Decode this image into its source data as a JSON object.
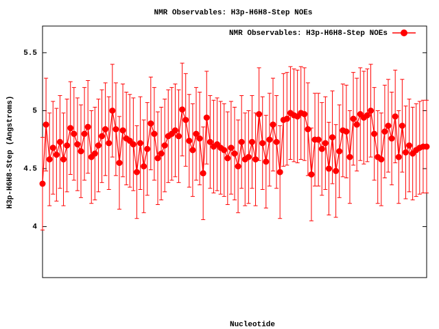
{
  "chart_data": {
    "type": "errorline",
    "title": "NMR Observables: H3p-H6H8-Step NOEs",
    "y_label": "H3p-H6H8-Step (Angstroms)",
    "x_label": "Nucleotide",
    "xlim": [
      1,
      111
    ],
    "ylim": [
      3.56,
      5.73
    ],
    "yticks": [
      4,
      4.5,
      5,
      5.5
    ],
    "legend": "top-right",
    "series": [
      {
        "name": "NMR Observables: H3p-H6H8-Step NOEs",
        "color": "#ff0000",
        "error": 0.4,
        "values": [
          4.37,
          4.88,
          4.58,
          4.68,
          4.62,
          4.73,
          4.58,
          4.7,
          4.85,
          4.8,
          4.71,
          4.65,
          4.8,
          4.86,
          4.6,
          4.63,
          4.7,
          4.78,
          4.84,
          4.72,
          5.0,
          4.84,
          4.55,
          4.83,
          4.76,
          4.74,
          4.71,
          4.47,
          4.72,
          4.52,
          4.67,
          4.89,
          4.8,
          4.59,
          4.63,
          4.7,
          4.78,
          4.8,
          4.83,
          4.78,
          5.01,
          4.92,
          4.74,
          4.66,
          4.8,
          4.76,
          4.46,
          4.94,
          4.73,
          4.69,
          4.71,
          4.68,
          4.66,
          4.59,
          4.68,
          4.63,
          4.52,
          4.73,
          4.58,
          4.6,
          4.73,
          4.58,
          4.97,
          4.72,
          4.56,
          4.75,
          4.88,
          4.73,
          4.47,
          4.92,
          4.93,
          4.98,
          4.96,
          4.95,
          4.98,
          4.97,
          4.84,
          4.45,
          4.75,
          4.75,
          4.67,
          4.72,
          4.5,
          4.77,
          4.48,
          4.65,
          4.83,
          4.82,
          4.6,
          4.93,
          4.88,
          4.97,
          4.94,
          4.96,
          5.0,
          4.8,
          4.6,
          4.58,
          4.82,
          4.87,
          4.76,
          4.95,
          4.6,
          4.87,
          4.64,
          4.7,
          4.63,
          4.66,
          4.68,
          4.69,
          4.69
        ]
      }
    ]
  }
}
